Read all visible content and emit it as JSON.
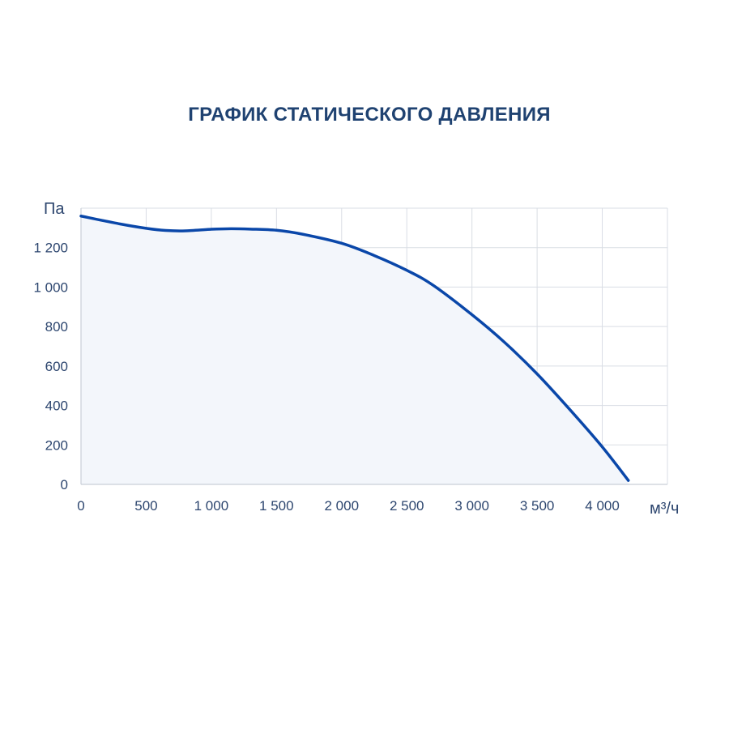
{
  "chart_data": {
    "type": "line",
    "title": "ГРАФИК СТАТИЧЕСКОГО ДАВЛЕНИЯ",
    "xlabel": "м³/ч",
    "ylabel": "Па",
    "xlim": [
      0,
      4500
    ],
    "ylim": [
      0,
      1400
    ],
    "x_ticks": [
      0,
      500,
      1000,
      1500,
      2000,
      2500,
      3000,
      3500,
      4000
    ],
    "x_tick_labels": [
      "0",
      "500",
      "1 000",
      "1 500",
      "2 000",
      "2 500",
      "3 000",
      "3 500",
      "4 000"
    ],
    "y_ticks": [
      0,
      200,
      400,
      600,
      800,
      1000,
      1200
    ],
    "y_tick_labels": [
      "0",
      "200",
      "400",
      "600",
      "800",
      "1 000",
      "1 200"
    ],
    "grid": true,
    "area_fill": true,
    "colors": {
      "line": "#0a47a9",
      "fill": "#f3f6fb",
      "grid": "#d9dde4",
      "text": "#2d466f",
      "title": "#1f4271"
    },
    "series": [
      {
        "x": [
          0,
          300,
          500,
          650,
          800,
          1000,
          1150,
          1300,
          1500,
          1700,
          2000,
          2250,
          2500,
          2700,
          3000,
          3250,
          3500,
          3750,
          4000,
          4200
        ],
        "y": [
          1360,
          1320,
          1298,
          1287,
          1285,
          1293,
          1296,
          1294,
          1288,
          1268,
          1222,
          1160,
          1085,
          1010,
          860,
          720,
          560,
          380,
          190,
          20
        ]
      }
    ]
  }
}
